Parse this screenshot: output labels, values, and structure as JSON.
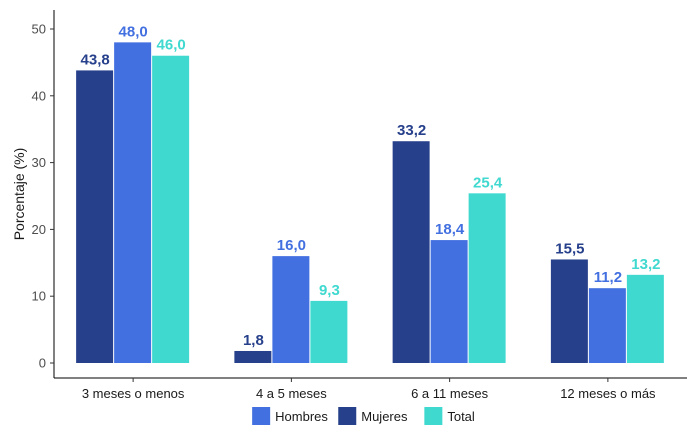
{
  "chart_data": {
    "type": "bar",
    "categories": [
      "3 meses o menos",
      "4 a 5 meses",
      "6 a 11 meses",
      "12 meses o más"
    ],
    "series": [
      {
        "name": "Mujeres",
        "color": "#27408b",
        "values": [
          43.8,
          1.8,
          33.2,
          15.5
        ],
        "labels": [
          "43,8",
          "1,8",
          "33,2",
          "15,5"
        ]
      },
      {
        "name": "Hombres",
        "color": "#4370e0",
        "values": [
          48.0,
          16.0,
          18.4,
          11.2
        ],
        "labels": [
          "48,0",
          "16,0",
          "18,4",
          "11,2"
        ]
      },
      {
        "name": "Total",
        "color": "#40d9d0",
        "values": [
          46.0,
          9.3,
          25.4,
          13.2
        ],
        "labels": [
          "46,0",
          "9,3",
          "25,4",
          "13,2"
        ]
      }
    ],
    "legend_order": [
      "Hombres",
      "Mujeres",
      "Total"
    ],
    "ylabel": "Porcentaje (%)",
    "xlabel": "",
    "ylim": [
      0,
      53
    ],
    "yticks": [
      "0",
      "10",
      "20",
      "30",
      "40",
      "50"
    ],
    "ytick_values": [
      0,
      10,
      20,
      30,
      40,
      50
    ],
    "grid": false,
    "legend_position": "bottom"
  }
}
